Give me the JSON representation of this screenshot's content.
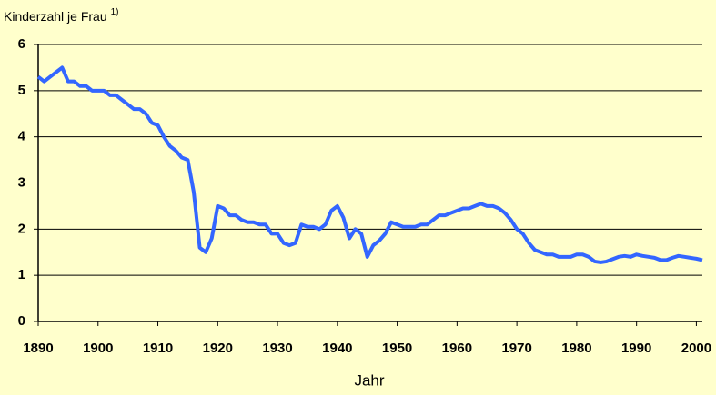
{
  "chart_data": {
    "type": "line",
    "ylabel": "Kinderzahl je Frau",
    "ylabel_note": "1)",
    "xlabel": "Jahr",
    "x": [
      1890,
      1891,
      1892,
      1893,
      1894,
      1895,
      1896,
      1897,
      1898,
      1899,
      1900,
      1901,
      1902,
      1903,
      1904,
      1905,
      1906,
      1907,
      1908,
      1909,
      1910,
      1911,
      1912,
      1913,
      1914,
      1915,
      1916,
      1917,
      1918,
      1919,
      1920,
      1921,
      1922,
      1923,
      1924,
      1925,
      1926,
      1927,
      1928,
      1929,
      1930,
      1931,
      1932,
      1933,
      1934,
      1935,
      1936,
      1937,
      1938,
      1939,
      1940,
      1941,
      1942,
      1943,
      1944,
      1945,
      1946,
      1947,
      1948,
      1949,
      1950,
      1951,
      1952,
      1953,
      1954,
      1955,
      1956,
      1957,
      1958,
      1959,
      1960,
      1961,
      1962,
      1963,
      1964,
      1965,
      1966,
      1967,
      1968,
      1969,
      1970,
      1971,
      1972,
      1973,
      1974,
      1975,
      1976,
      1977,
      1978,
      1979,
      1980,
      1981,
      1982,
      1983,
      1984,
      1985,
      1986,
      1987,
      1988,
      1989,
      1990,
      1991,
      1992,
      1993,
      1994,
      1995,
      1996,
      1997,
      1998,
      1999,
      2000,
      2001
    ],
    "series": [
      {
        "color": "#3366ff",
        "values": [
          5.3,
          5.2,
          5.3,
          5.4,
          5.5,
          5.2,
          5.2,
          5.1,
          5.1,
          5.0,
          5.0,
          5.0,
          4.9,
          4.9,
          4.8,
          4.7,
          4.6,
          4.6,
          4.5,
          4.3,
          4.25,
          4.0,
          3.8,
          3.7,
          3.55,
          3.5,
          2.8,
          1.6,
          1.5,
          1.8,
          2.5,
          2.45,
          2.3,
          2.3,
          2.2,
          2.15,
          2.15,
          2.1,
          2.1,
          1.9,
          1.9,
          1.7,
          1.65,
          1.7,
          2.1,
          2.05,
          2.05,
          2.0,
          2.1,
          2.4,
          2.5,
          2.25,
          1.8,
          2.0,
          1.9,
          1.4,
          1.65,
          1.75,
          1.9,
          2.15,
          2.1,
          2.05,
          2.05,
          2.05,
          2.1,
          2.1,
          2.2,
          2.3,
          2.3,
          2.35,
          2.4,
          2.45,
          2.45,
          2.5,
          2.55,
          2.5,
          2.5,
          2.45,
          2.35,
          2.2,
          2.0,
          1.9,
          1.7,
          1.55,
          1.5,
          1.45,
          1.45,
          1.4,
          1.4,
          1.4,
          1.45,
          1.45,
          1.4,
          1.3,
          1.28,
          1.3,
          1.35,
          1.4,
          1.42,
          1.4,
          1.45,
          1.42,
          1.4,
          1.38,
          1.33,
          1.33,
          1.38,
          1.42,
          1.4,
          1.38,
          1.36,
          1.33
        ]
      }
    ],
    "xlim": [
      1890,
      2001
    ],
    "xticks": [
      1890,
      1900,
      1910,
      1920,
      1930,
      1940,
      1950,
      1960,
      1970,
      1980,
      1990,
      2000
    ],
    "ylim": [
      0,
      6
    ],
    "yticks": [
      0,
      1,
      2,
      3,
      4,
      5,
      6
    ],
    "grid": true
  }
}
